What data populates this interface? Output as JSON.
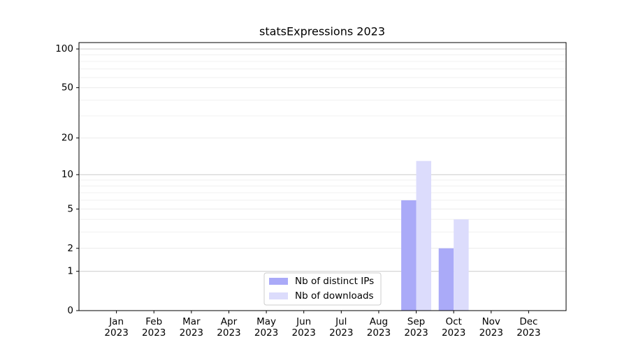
{
  "chart_data": {
    "type": "bar",
    "title": "statsExpressions 2023",
    "categories": [
      "Jan\n2023",
      "Feb\n2023",
      "Mar\n2023",
      "Apr\n2023",
      "May\n2023",
      "Jun\n2023",
      "Jul\n2023",
      "Aug\n2023",
      "Sep\n2023",
      "Oct\n2023",
      "Nov\n2023",
      "Dec\n2023"
    ],
    "series": [
      {
        "name": "Nb of distinct IPs",
        "color": "#aaaaf8",
        "values": [
          0,
          0,
          0,
          0,
          0,
          0,
          0,
          0,
          6,
          2,
          0,
          0
        ]
      },
      {
        "name": "Nb of downloads",
        "color": "#dcdcfc",
        "values": [
          0,
          0,
          0,
          0,
          0,
          0,
          0,
          0,
          13,
          4,
          0,
          0
        ]
      }
    ],
    "yscale": "log1p",
    "ylim": [
      0,
      112
    ],
    "yticks": [
      0,
      1,
      2,
      5,
      10,
      20,
      50,
      100
    ],
    "minor_yticks": [
      3,
      4,
      6,
      7,
      8,
      9,
      30,
      40,
      60,
      70,
      80,
      90
    ],
    "grid": true,
    "legend": "lower center"
  }
}
